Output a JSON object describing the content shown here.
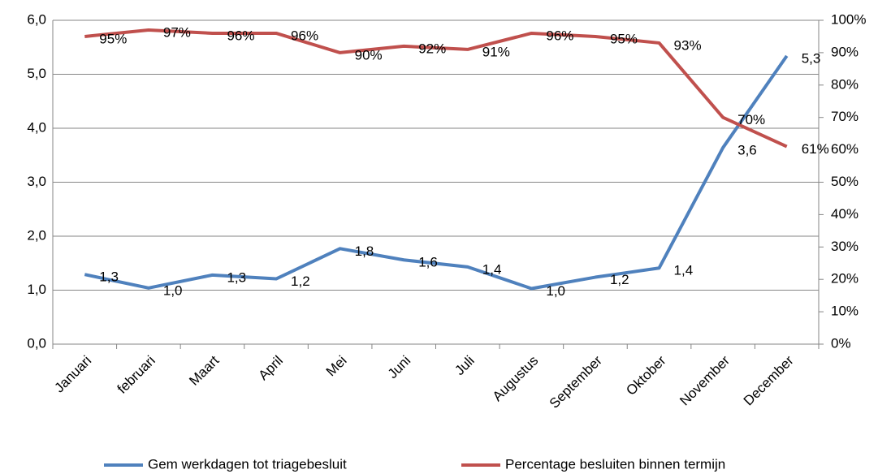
{
  "chart_data": {
    "type": "line",
    "categories": [
      "Januari",
      "februari",
      "Maart",
      "April",
      "Mei",
      "Juni",
      "Juli",
      "Augustus",
      "September",
      "Oktober",
      "November",
      "December"
    ],
    "series": [
      {
        "name": "Gem werkdagen tot triagebesluit",
        "color": "#4f81bd",
        "values": [
          1.29,
          1.04,
          1.28,
          1.21,
          1.77,
          1.56,
          1.43,
          1.03,
          1.24,
          1.41,
          3.64,
          5.34
        ],
        "value_labels": [
          "1,3",
          "1,0",
          "1,3",
          "1,2",
          "1,8",
          "1,6",
          "1,4",
          "1,0",
          "1,2",
          "1,4",
          "3,6",
          "5,3"
        ]
      },
      {
        "name": "Percentage besluiten binnen termijn",
        "color": "#c0504d",
        "axis": "y2",
        "values": [
          95,
          97,
          96,
          96,
          90,
          92,
          91,
          96,
          95,
          93,
          70,
          61
        ],
        "value_labels": [
          "95%",
          "97%",
          "96%",
          "96%",
          "90%",
          "92%",
          "91%",
          "96%",
          "95%",
          "93%",
          "70%",
          "61%"
        ]
      }
    ],
    "ylim": [
      0,
      6
    ],
    "yticks": [
      {
        "value": 0,
        "label": "0,0"
      },
      {
        "value": 1,
        "label": "1,0"
      },
      {
        "value": 2,
        "label": "2,0"
      },
      {
        "value": 3,
        "label": "3,0"
      },
      {
        "value": 4,
        "label": "4,0"
      },
      {
        "value": 5,
        "label": "5,0"
      },
      {
        "value": 6,
        "label": "6,0"
      }
    ],
    "y2lim": [
      0,
      100
    ],
    "y2ticks": [
      {
        "value": 0,
        "label": "0%"
      },
      {
        "value": 10,
        "label": "10%"
      },
      {
        "value": 20,
        "label": "20%"
      },
      {
        "value": 30,
        "label": "30%"
      },
      {
        "value": 40,
        "label": "40%"
      },
      {
        "value": 50,
        "label": "50%"
      },
      {
        "value": 60,
        "label": "60%"
      },
      {
        "value": 70,
        "label": "70%"
      },
      {
        "value": 80,
        "label": "80%"
      },
      {
        "value": 90,
        "label": "90%"
      },
      {
        "value": 100,
        "label": "100%"
      }
    ],
    "grid": true,
    "legend": "bottom"
  }
}
